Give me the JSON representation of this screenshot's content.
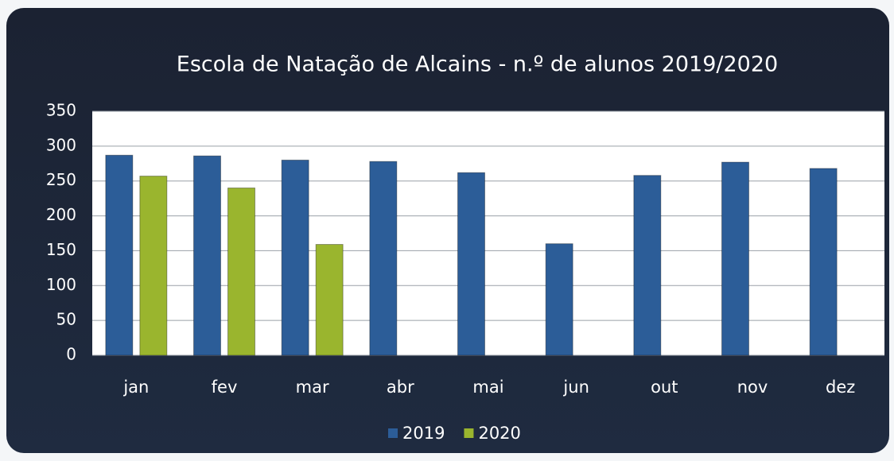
{
  "chart_data": {
    "type": "bar",
    "title": "Escola de Natação de Alcains - n.º de alunos 2019/2020",
    "categories": [
      "jan",
      "fev",
      "mar",
      "abr",
      "mai",
      "jun",
      "out",
      "nov",
      "dez"
    ],
    "series": [
      {
        "name": "2019",
        "color": "#2c5d98",
        "values": [
          287,
          286,
          280,
          278,
          262,
          160,
          258,
          277,
          268
        ]
      },
      {
        "name": "2020",
        "color": "#9ab52e",
        "values": [
          257,
          240,
          159,
          null,
          null,
          null,
          null,
          null,
          null
        ]
      }
    ],
    "ylim": [
      0,
      350
    ],
    "yticks": [
      0,
      50,
      100,
      150,
      200,
      250,
      300,
      350
    ],
    "grid": true,
    "legend": "bottom"
  }
}
